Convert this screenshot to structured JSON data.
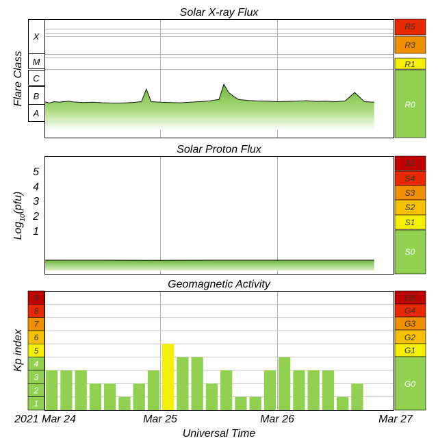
{
  "titles": {
    "xray": "Solar X-ray Flux",
    "proton": "Solar Proton Flux",
    "geo": "Geomagnetic Activity"
  },
  "ylabels": {
    "xray": "Flare Class",
    "proton_base": "Log",
    "proton_sub": "10",
    "proton_rest": "(pfu)",
    "geo": "Kp index"
  },
  "xlabel": "Universal Time",
  "dates": [
    "2021 Mar 24",
    "Mar 25",
    "Mar 26",
    "Mar 27"
  ],
  "flare_classes": [
    "X",
    "M",
    "C",
    "B",
    "A"
  ],
  "proton_ticks": [
    "5",
    "4",
    "3",
    "2",
    "1"
  ],
  "kp_ticks": [
    "9",
    "8",
    "7",
    "6",
    "5",
    "4",
    "3",
    "2",
    "1"
  ],
  "radio_scale": [
    "R5",
    "R3",
    "R1",
    "R0"
  ],
  "solar_scale": [
    "S5",
    "S4",
    "S3",
    "S2",
    "S1",
    "S0"
  ],
  "geo_scale": [
    "G5",
    "G4",
    "G3",
    "G2",
    "G1",
    "G0"
  ],
  "colors": {
    "green": "#92d050",
    "yellow": "#f5f000",
    "gold": "#f5c000",
    "orange": "#f09000",
    "red": "#e82800",
    "darkred": "#c00000",
    "grid": "#b4b4b4"
  },
  "chart_data": [
    {
      "type": "line",
      "title": "Solar X-ray Flux",
      "ylabel": "Flare Class",
      "xlabel": "Universal Time",
      "x_range": [
        "2021-03-24 00:00",
        "2021-03-27 00:00"
      ],
      "y_scale": "log",
      "y_categories": [
        "A",
        "B",
        "C",
        "M",
        "X"
      ],
      "series": [
        {
          "x_hours": [
            0,
            1,
            2,
            3,
            4,
            5,
            6,
            8,
            10,
            12,
            14,
            16,
            18,
            20,
            21,
            22,
            23,
            24,
            26,
            28,
            30,
            32,
            34,
            36,
            37,
            38,
            39,
            40,
            42,
            44,
            46,
            48,
            50,
            52,
            54,
            56,
            58,
            60,
            62,
            64,
            66,
            68
          ],
          "class_level": [
            "A3",
            "A2.5",
            "A3",
            "A2.8",
            "A3",
            "A3.2",
            "A2.9",
            "A2.7",
            "A2.8",
            "A2.6",
            "A2.5",
            "A2.5",
            "A2.7",
            "A3",
            "B1.6",
            "A3",
            "A2.9",
            "A2.8",
            "A2.7",
            "A2.6",
            "A2.8",
            "A3",
            "A3.3",
            "A4",
            "B3",
            "B1",
            "A6",
            "A4",
            "A3.5",
            "A3.3",
            "A3.2",
            "A3",
            "A3.1",
            "A3.2",
            "A3.4",
            "A3.1",
            "A3.2",
            "A3",
            "A3.3",
            "B1",
            "A3",
            "A2.8"
          ]
        }
      ]
    },
    {
      "type": "line",
      "title": "Solar Proton Flux",
      "ylabel": "Log10(pfu)",
      "xlabel": "Universal Time",
      "x_range": [
        "2021-03-24 00:00",
        "2021-03-27 00:00"
      ],
      "ylim": [
        -1.4,
        5.9
      ],
      "series": [
        {
          "x_hours": [
            0,
            12,
            24,
            36,
            48,
            60,
            68
          ],
          "values": [
            -0.55,
            -0.55,
            -0.56,
            -0.55,
            -0.55,
            -0.55,
            -0.55
          ]
        }
      ]
    },
    {
      "type": "bar",
      "title": "Geomagnetic Activity",
      "ylabel": "Kp index",
      "xlabel": "Universal Time",
      "ylim": [
        0,
        9
      ],
      "bar_interval_hours": 3,
      "x_start_hours": [
        0,
        3,
        6,
        9,
        12,
        15,
        18,
        21,
        24,
        27,
        30,
        33,
        36,
        39,
        42,
        45,
        48,
        51,
        54,
        57,
        60,
        63,
        66
      ],
      "values": [
        3,
        3,
        3,
        2,
        2,
        1,
        2,
        3,
        5,
        4,
        4,
        2,
        3,
        1,
        1,
        3,
        4,
        3,
        3,
        3,
        1,
        2,
        0
      ]
    }
  ]
}
